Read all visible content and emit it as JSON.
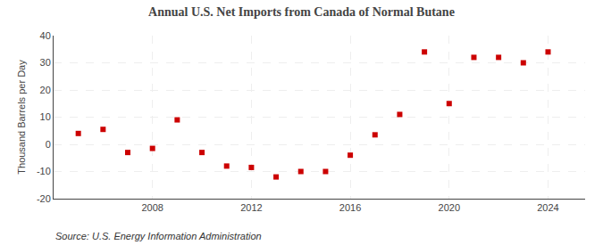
{
  "chart_data": {
    "type": "scatter",
    "title": "Annual U.S. Net Imports from Canada of Normal Butane",
    "ylabel": "Thousand Barrels per Day",
    "annotations": [
      "Source: U.S. Energy Information Administration"
    ],
    "x": [
      2005,
      2006,
      2007,
      2008,
      2009,
      2010,
      2011,
      2012,
      2013,
      2014,
      2015,
      2016,
      2017,
      2018,
      2019,
      2020,
      2021,
      2022,
      2023,
      2024
    ],
    "values": [
      4.0,
      5.5,
      -3.0,
      -1.5,
      9.0,
      -3.0,
      -8.0,
      -8.5,
      -12.0,
      -10.0,
      -10.0,
      -4.0,
      3.5,
      11.0,
      34.0,
      15.0,
      32.0,
      32.0,
      30.0,
      34.0
    ],
    "color": "#cc0000",
    "marker": "square",
    "xlim": [
      2004.0,
      2025.5
    ],
    "xticks": [
      2008,
      2012,
      2016,
      2020,
      2024
    ],
    "ylim": [
      -20,
      40
    ],
    "yticks": [
      -20,
      -10,
      0,
      10,
      20,
      30,
      40
    ],
    "grid": true
  }
}
